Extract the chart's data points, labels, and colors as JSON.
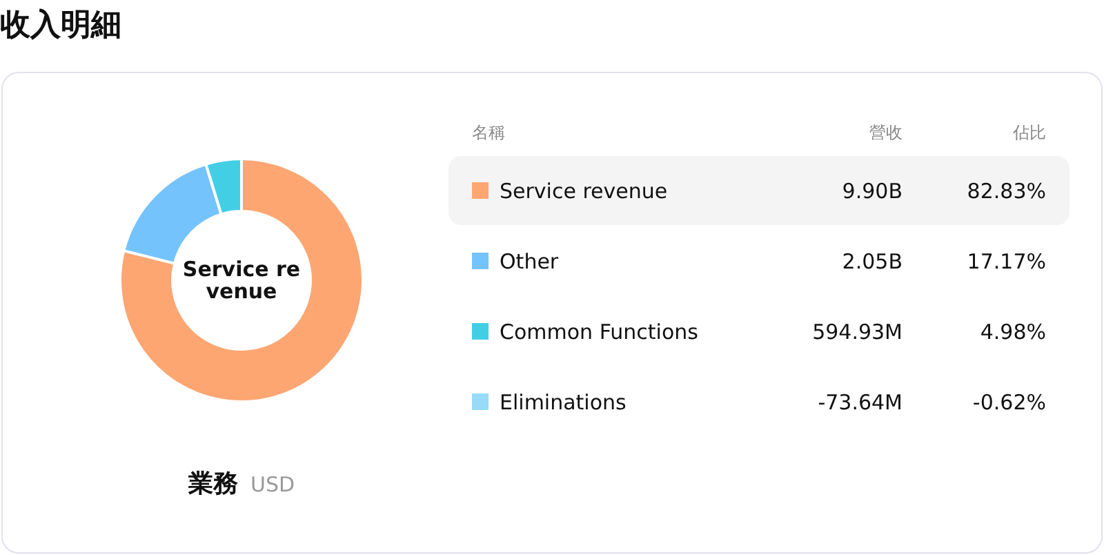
{
  "chart_data": {
    "type": "donut",
    "title": "收入明細",
    "subtitle": "業務",
    "categories": [
      "Service revenue",
      "Other",
      "Common Functions",
      "Eliminations"
    ],
    "values": [
      9900000000,
      2050000000,
      594930000,
      null
    ],
    "colors": [
      "#fda672",
      "#75c3fd",
      "#42cfe6",
      "#97dbf9"
    ],
    "value_labels": [
      "9.90B",
      "2.05B",
      "594.93M",
      "-73.64M"
    ],
    "legend": "right",
    "legend_title": "名稱",
    "annotations": [
      "USD",
      "營收",
      "佔比",
      "82.83%",
      "17.17%",
      "4.98%",
      "-0.62%"
    ]
  }
}
